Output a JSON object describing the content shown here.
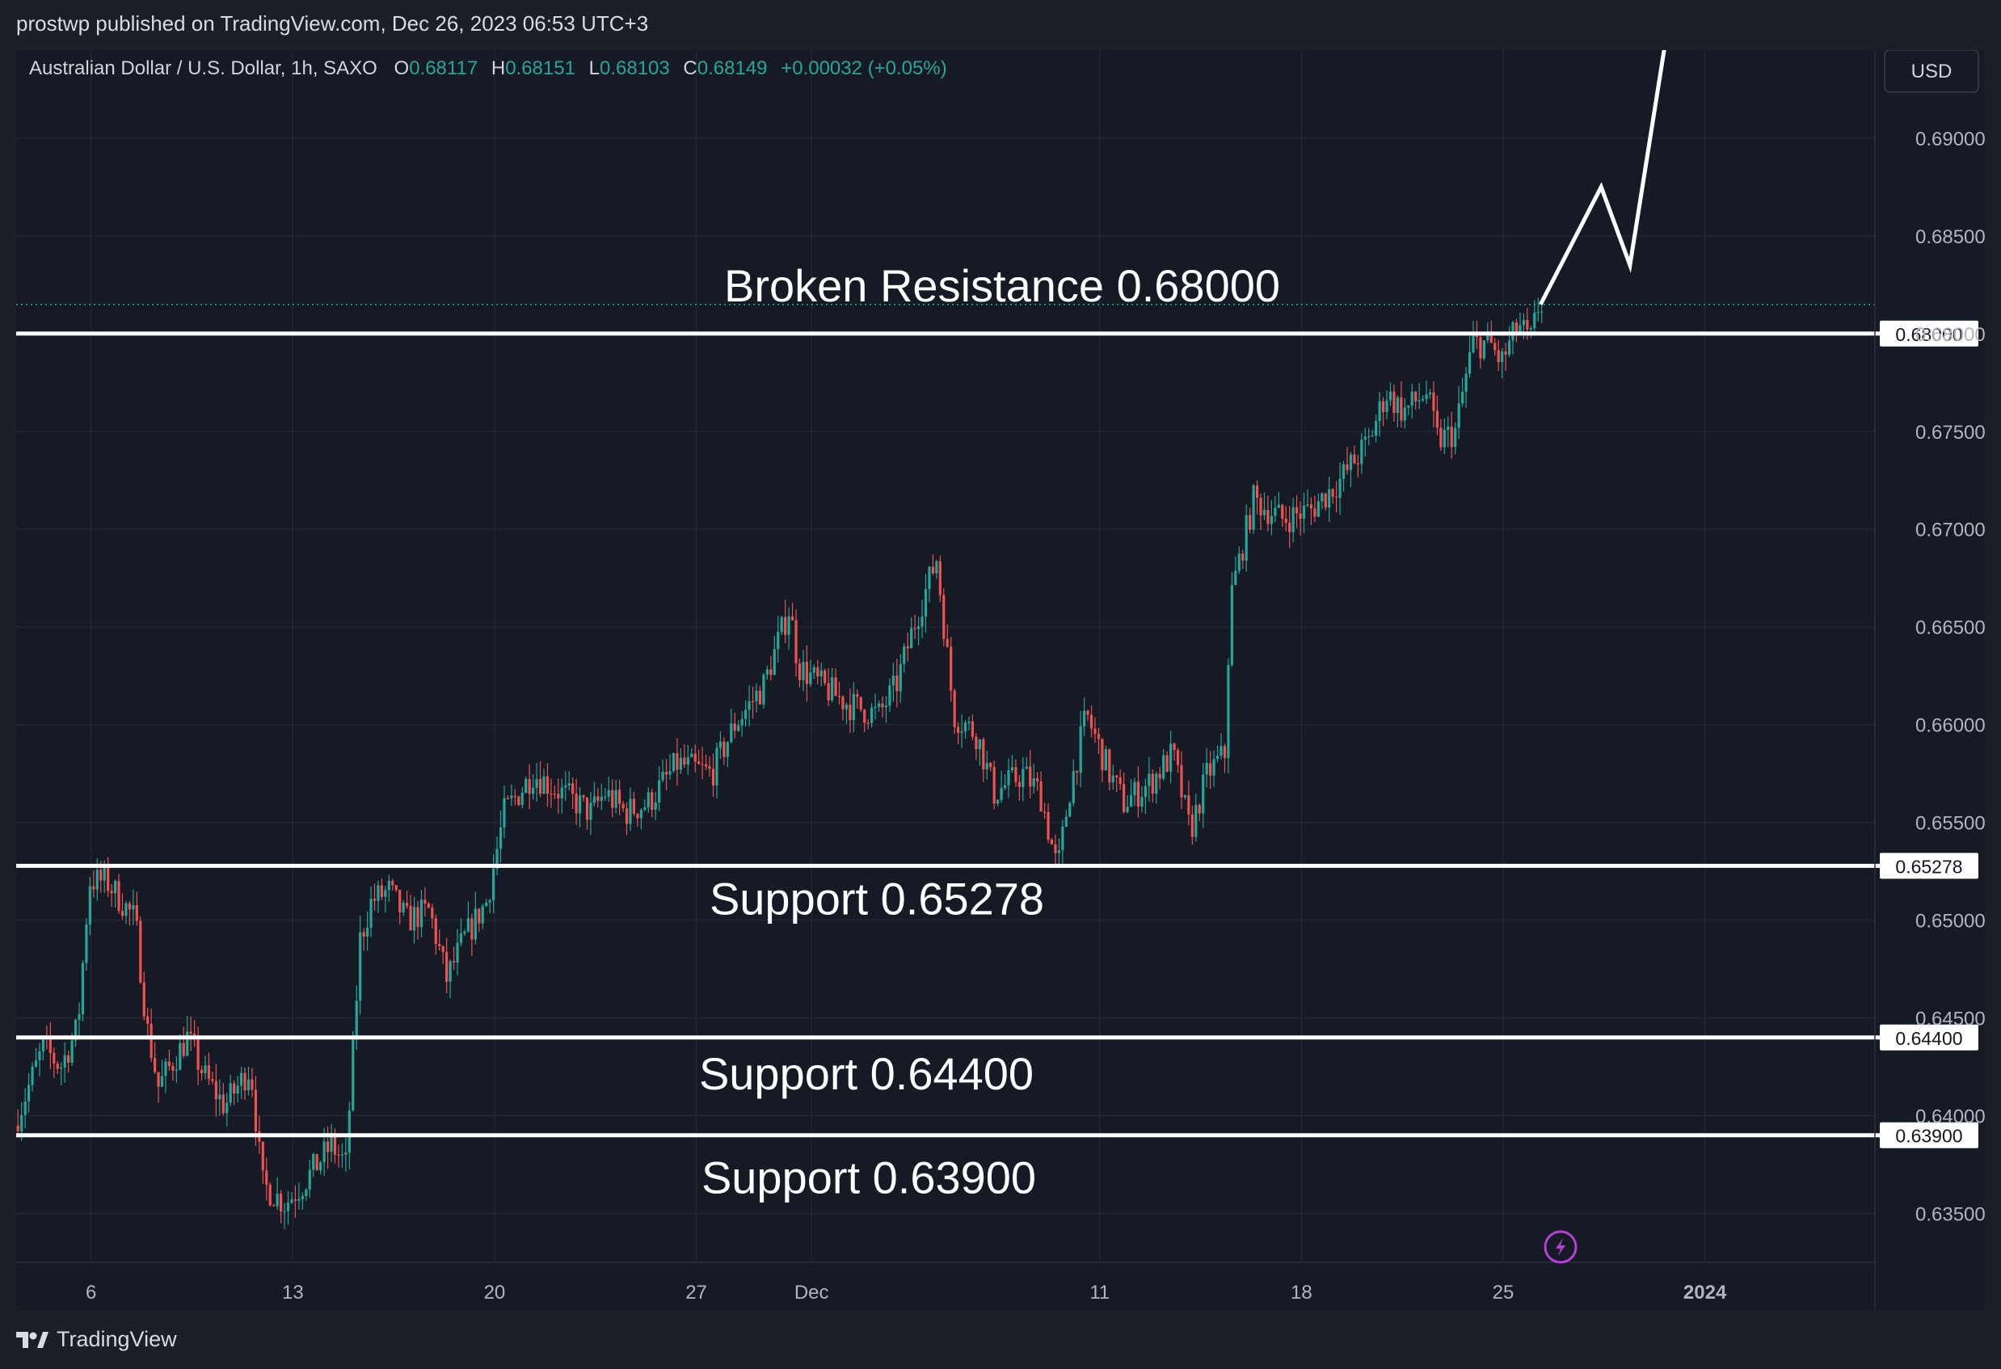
{
  "header": {
    "published": "prostwp published on TradingView.com, Dec 26, 2023 06:53 UTC+3"
  },
  "legend": {
    "symbol": "Australian Dollar / U.S. Dollar, 1h, SAXO",
    "o_label": "O",
    "o_value": "0.68117",
    "h_label": "H",
    "h_value": "0.68151",
    "l_label": "L",
    "l_value": "0.68103",
    "c_label": "C",
    "c_value": "0.68149",
    "change": "+0.00032 (+0.05%)"
  },
  "currency_button": "USD",
  "footer": {
    "brand": "TradingView"
  },
  "colors": {
    "up": "#26a69a",
    "down": "#ef5350",
    "background": "#161a25",
    "grid": "#232733",
    "level_line": "#ffffff",
    "axis_text": "#b2b5be"
  },
  "icons": {
    "logo": "tradingview-logo-icon",
    "flash": "lightning-icon"
  },
  "chart_data": {
    "type": "candlestick",
    "symbol": "AUDUSD",
    "timeframe": "1h",
    "ylim": [
      0.6325,
      0.6945
    ],
    "y_ticks": [
      "0.63500",
      "0.64000",
      "0.64500",
      "0.65000",
      "0.65500",
      "0.66000",
      "0.66500",
      "0.67000",
      "0.67500",
      "0.68000",
      "0.68500",
      "0.69000"
    ],
    "x_ticks": [
      {
        "label": "6",
        "day": 6
      },
      {
        "label": "13",
        "day": 13
      },
      {
        "label": "20",
        "day": 20
      },
      {
        "label": "27",
        "day": 27
      },
      {
        "label": "Dec",
        "day": 31
      },
      {
        "label": "11",
        "day": 41
      },
      {
        "label": "18",
        "day": 48
      },
      {
        "label": "25",
        "day": 55
      },
      {
        "label": "2024",
        "day": 62
      }
    ],
    "x_range_days": [
      3.4,
      67.9
    ],
    "last_price": 0.68149,
    "price_path": [
      [
        3.4,
        0.6395
      ],
      [
        4.4,
        0.6435
      ],
      [
        5.0,
        0.6425
      ],
      [
        5.6,
        0.6445
      ],
      [
        6.0,
        0.652
      ],
      [
        6.6,
        0.652
      ],
      [
        7.6,
        0.65
      ],
      [
        8.0,
        0.6445
      ],
      [
        8.4,
        0.6415
      ],
      [
        9.4,
        0.644
      ],
      [
        10.0,
        0.642
      ],
      [
        10.7,
        0.6405
      ],
      [
        11.6,
        0.6425
      ],
      [
        12.0,
        0.6365
      ],
      [
        12.8,
        0.6355
      ],
      [
        13.4,
        0.6365
      ],
      [
        14.4,
        0.6385
      ],
      [
        14.9,
        0.6375
      ],
      [
        15.4,
        0.649
      ],
      [
        15.8,
        0.651
      ],
      [
        16.4,
        0.6515
      ],
      [
        17.0,
        0.65
      ],
      [
        17.8,
        0.6505
      ],
      [
        18.4,
        0.647
      ],
      [
        19.0,
        0.649
      ],
      [
        19.8,
        0.651
      ],
      [
        20.4,
        0.6555
      ],
      [
        21.4,
        0.6575
      ],
      [
        22.4,
        0.6565
      ],
      [
        23.4,
        0.6555
      ],
      [
        23.9,
        0.6565
      ],
      [
        24.6,
        0.6555
      ],
      [
        25.4,
        0.656
      ],
      [
        26.4,
        0.658
      ],
      [
        27.6,
        0.6575
      ],
      [
        28.4,
        0.66
      ],
      [
        29.4,
        0.662
      ],
      [
        30.3,
        0.666
      ],
      [
        30.6,
        0.663
      ],
      [
        31.4,
        0.662
      ],
      [
        32.4,
        0.661
      ],
      [
        33.4,
        0.6605
      ],
      [
        34.0,
        0.662
      ],
      [
        34.6,
        0.665
      ],
      [
        35.4,
        0.6685
      ],
      [
        36.0,
        0.6605
      ],
      [
        36.8,
        0.6595
      ],
      [
        37.4,
        0.6565
      ],
      [
        38.4,
        0.6575
      ],
      [
        39.0,
        0.6565
      ],
      [
        39.6,
        0.6525
      ],
      [
        40.0,
        0.6565
      ],
      [
        40.6,
        0.6605
      ],
      [
        41.4,
        0.6575
      ],
      [
        41.9,
        0.656
      ],
      [
        42.8,
        0.657
      ],
      [
        43.6,
        0.6585
      ],
      [
        44.2,
        0.6545
      ],
      [
        44.8,
        0.6575
      ],
      [
        45.4,
        0.6585
      ],
      [
        45.6,
        0.6665
      ],
      [
        46.4,
        0.6715
      ],
      [
        47.4,
        0.6705
      ],
      [
        48.4,
        0.671
      ],
      [
        49.4,
        0.6725
      ],
      [
        50.4,
        0.6745
      ],
      [
        51.0,
        0.677
      ],
      [
        51.6,
        0.676
      ],
      [
        52.4,
        0.677
      ],
      [
        52.8,
        0.6745
      ],
      [
        53.4,
        0.675
      ],
      [
        54.0,
        0.6795
      ],
      [
        54.6,
        0.6795
      ],
      [
        55.0,
        0.6785
      ],
      [
        55.6,
        0.6805
      ],
      [
        56.0,
        0.6795
      ],
      [
        56.3,
        0.6815
      ]
    ],
    "horizontal_levels": [
      {
        "price": 0.68,
        "price_label": "0.68000",
        "annotation": "Broken Resistance 0.68000"
      },
      {
        "price": 0.65278,
        "price_label": "0.65278",
        "annotation": "Support 0.65278"
      },
      {
        "price": 0.644,
        "price_label": "0.64400",
        "annotation": "Support 0.64400"
      },
      {
        "price": 0.639,
        "price_label": "0.63900",
        "annotation": "Support 0.63900"
      }
    ],
    "projection_path": [
      [
        56.3,
        0.6815
      ],
      [
        58.4,
        0.6875
      ],
      [
        59.4,
        0.6835
      ],
      [
        60.8,
        0.6965
      ]
    ]
  }
}
